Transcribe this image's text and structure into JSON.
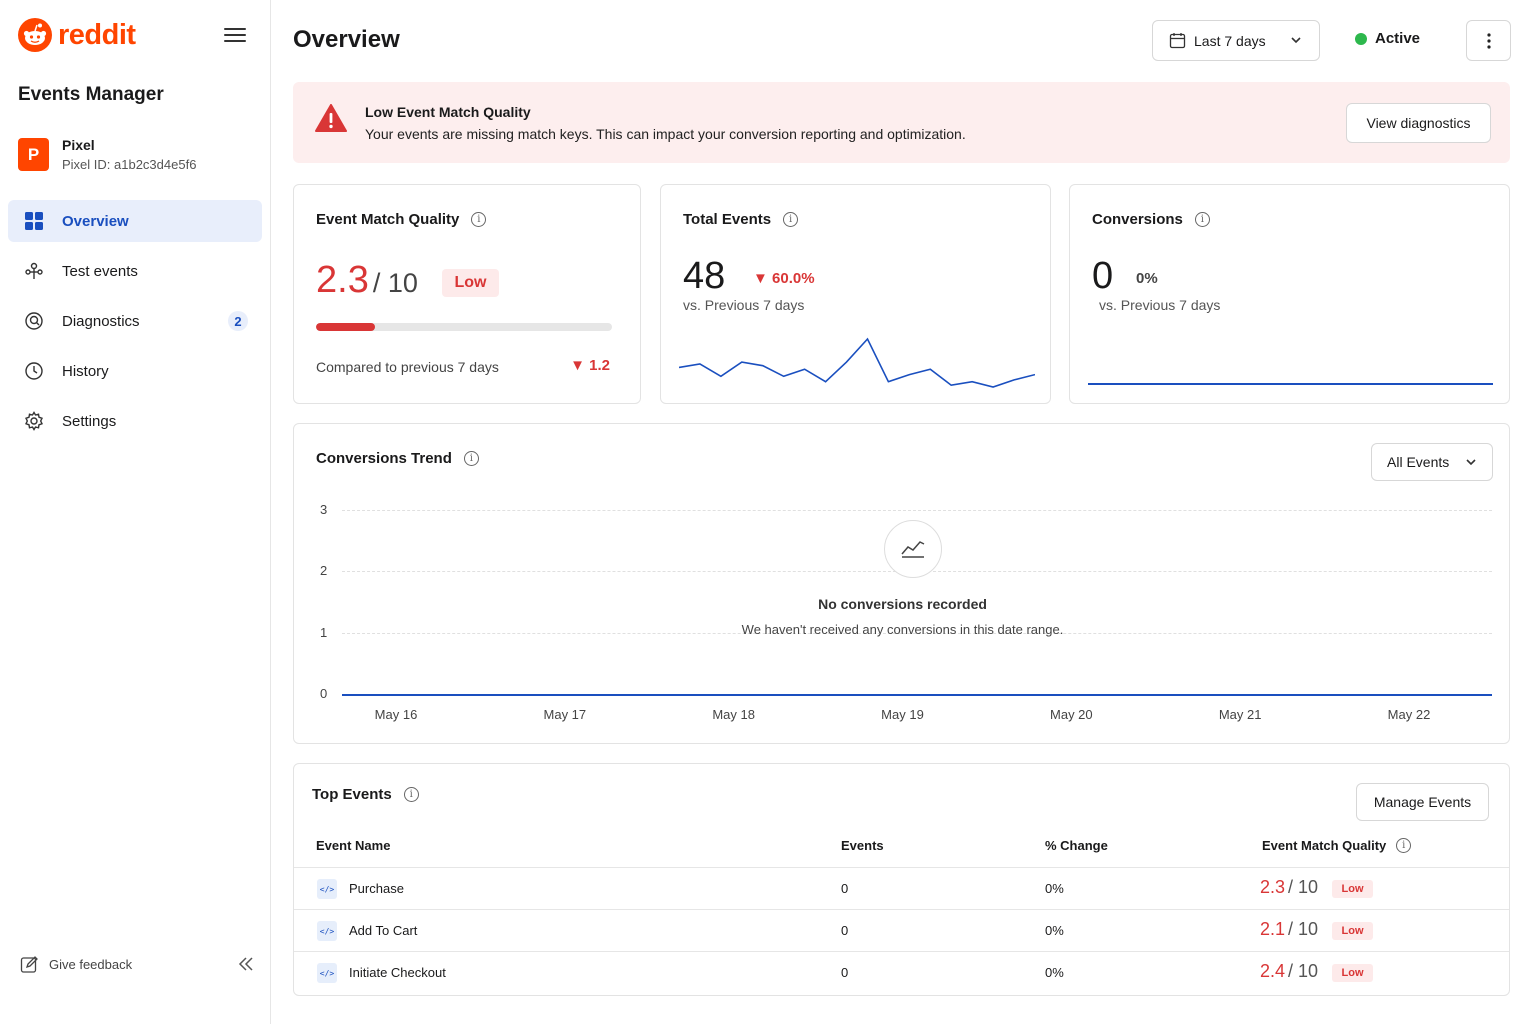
{
  "brand": {
    "name": "reddit",
    "color": "#ff4500"
  },
  "sidebar": {
    "title": "Events Manager",
    "pixel": {
      "avatar_letter": "P",
      "name": "Pixel",
      "id_text": "Pixel ID: a1b2c3d4e5f6"
    },
    "items": [
      {
        "label": "Overview",
        "icon": "grid-icon",
        "active": true
      },
      {
        "label": "Test events",
        "icon": "test-events-icon"
      },
      {
        "label": "Diagnostics",
        "icon": "diagnostics-icon",
        "badge": "2"
      },
      {
        "label": "History",
        "icon": "clock-icon"
      },
      {
        "label": "Settings",
        "icon": "gear-icon"
      }
    ],
    "feedback_label": "Give feedback"
  },
  "header": {
    "title": "Overview",
    "date_range": "Last 7 days",
    "status": "Active",
    "status_color": "#2db84d"
  },
  "alert": {
    "title": "Low Event Match Quality",
    "text": "Your events are missing match keys. This can impact your conversion reporting and optimization.",
    "button": "View diagnostics"
  },
  "emq_card": {
    "title": "Event Match Quality",
    "score": "2.3",
    "denominator": "/ 10",
    "rating": "Low",
    "progress_fraction": 0.2,
    "compare_text": "Compared to previous 7 days",
    "delta": "▼ 1.2"
  },
  "events_card": {
    "title": "Total Events",
    "value": "48",
    "change": "▼ 60.0%",
    "sub": "vs. Previous 7 days",
    "sparkline": [
      30,
      28,
      35,
      27,
      29,
      35,
      31,
      38,
      27,
      14,
      38,
      34,
      31,
      40,
      38,
      41,
      37,
      34
    ]
  },
  "conversions_card": {
    "title": "Conversions",
    "value": "0",
    "change": "0%",
    "sub": "vs. Previous 7 days"
  },
  "trend": {
    "title": "Conversions Trend",
    "filter": "All Events",
    "empty_title": "No conversions recorded",
    "empty_text": "We haven't received any conversions in this date range.",
    "chart_data": {
      "type": "line",
      "x": [
        "May 16",
        "May 17",
        "May 18",
        "May 19",
        "May 20",
        "May 21",
        "May 22"
      ],
      "series": [
        {
          "values": [
            0,
            0,
            0,
            0,
            0,
            0,
            0
          ]
        }
      ],
      "yticks": [
        "3",
        "2",
        "1",
        "0"
      ],
      "ylim": [
        0,
        3
      ],
      "grid": true
    }
  },
  "top_events": {
    "title": "Top Events",
    "manage_button": "Manage Events",
    "columns": [
      "Event Name",
      "Events",
      "% Change",
      "Event Match Quality"
    ],
    "rows": [
      {
        "name": "Purchase",
        "events": "0",
        "change": "0%",
        "score": "2.3",
        "den": "/ 10",
        "rating": "Low"
      },
      {
        "name": "Add To Cart",
        "events": "0",
        "change": "0%",
        "score": "2.1",
        "den": "/ 10",
        "rating": "Low"
      },
      {
        "name": "Initiate Checkout",
        "events": "0",
        "change": "0%",
        "score": "2.4",
        "den": "/ 10",
        "rating": "Low"
      }
    ],
    "code_chip": "</>"
  },
  "colors": {
    "accent": "#1a4fbf",
    "danger": "#d93636",
    "alert_bg": "#fdeeee"
  }
}
